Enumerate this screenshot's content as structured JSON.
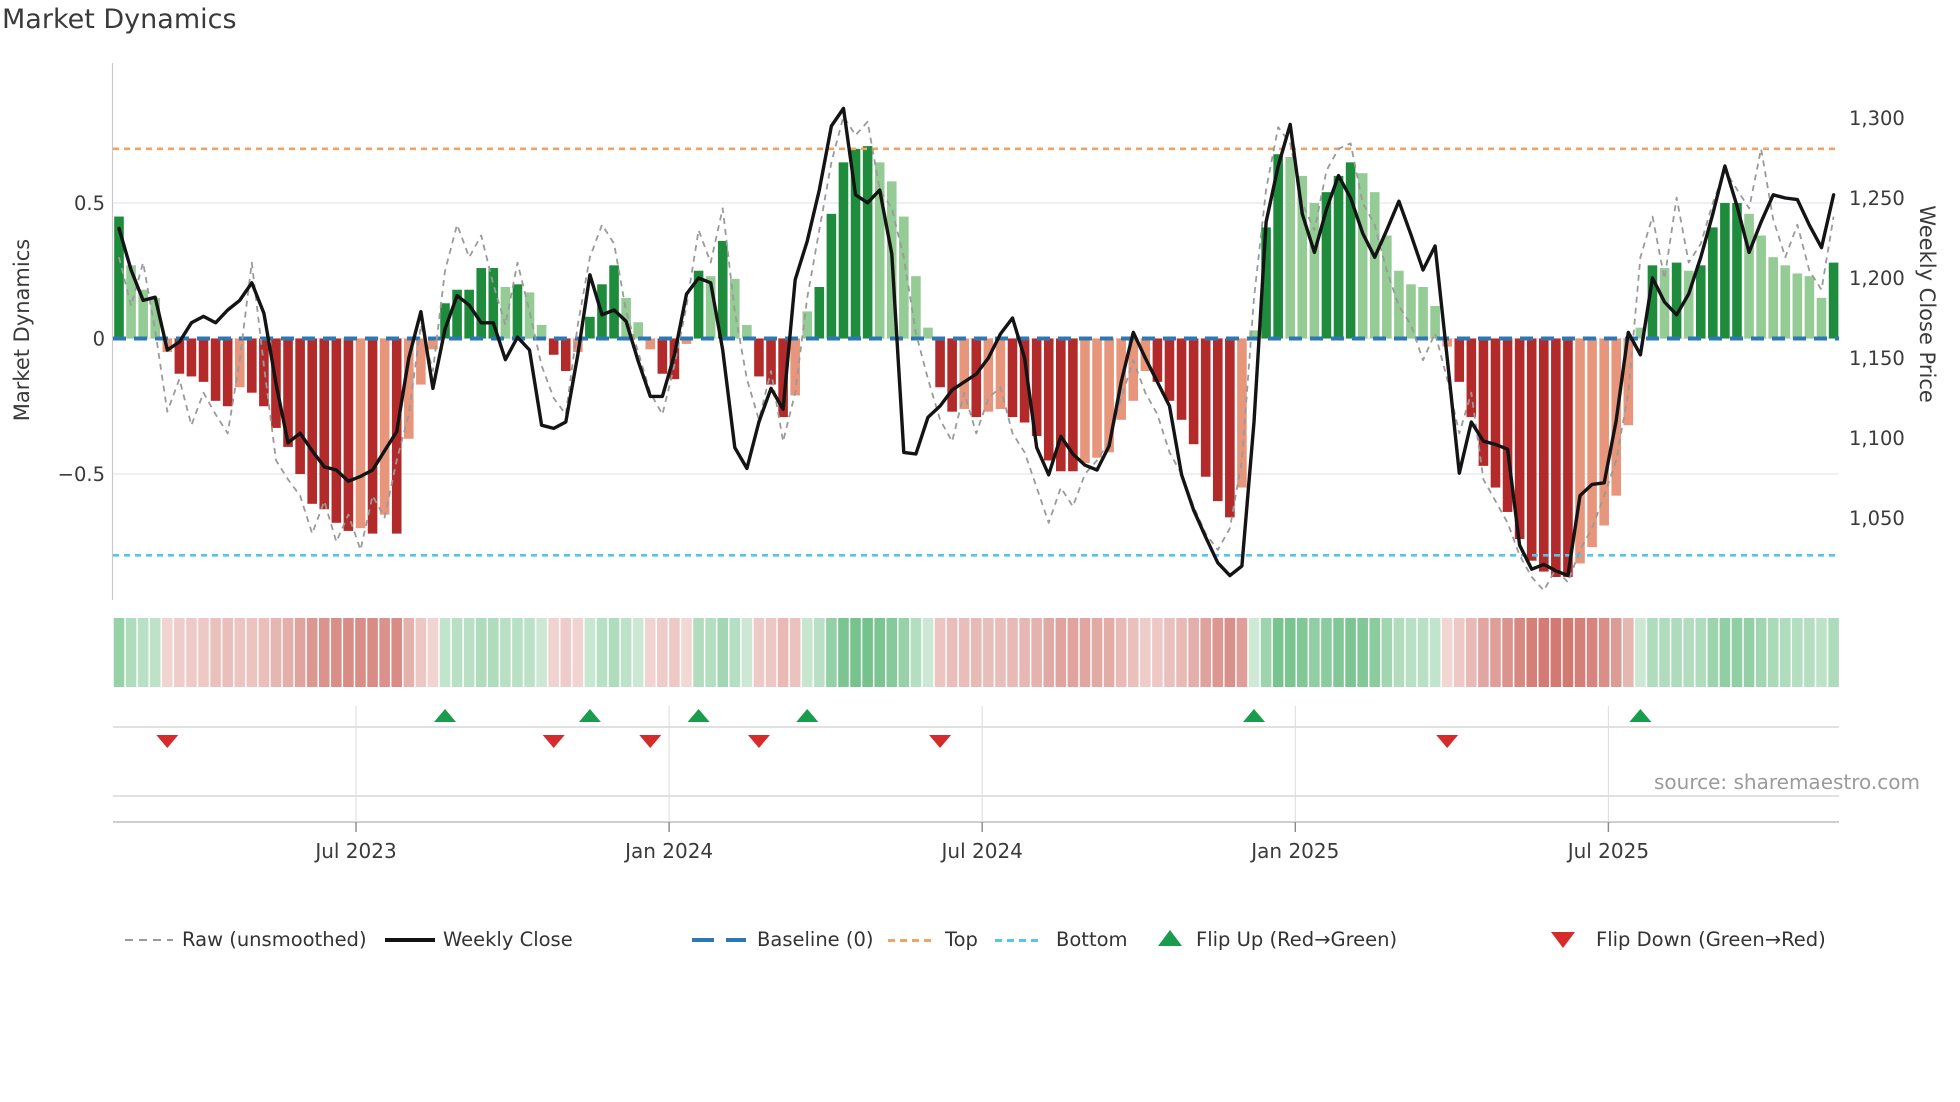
{
  "title": "Market Dynamics",
  "source": "source: sharemaestro.com",
  "axes": {
    "left_label": "Market Dynamics",
    "right_label": "Weekly Close Price",
    "left_ticks": [
      {
        "label": "0.5",
        "value": 0.5
      },
      {
        "label": "0",
        "value": 0
      },
      {
        "label": "−0.5",
        "value": -0.5
      }
    ],
    "right_ticks": [
      {
        "label": "1,300",
        "value": 1300
      },
      {
        "label": "1,250",
        "value": 1250
      },
      {
        "label": "1,200",
        "value": 1200
      },
      {
        "label": "1,150",
        "value": 1150
      },
      {
        "label": "1,100",
        "value": 1100
      },
      {
        "label": "1,050",
        "value": 1050
      }
    ],
    "x_ticks": [
      {
        "label": "Jul 2023",
        "week": 19.63
      },
      {
        "label": "Jan 2024",
        "week": 45.56
      },
      {
        "label": "Jul 2024",
        "week": 71.49
      },
      {
        "label": "Jan 2025",
        "week": 97.42
      },
      {
        "label": "Jul 2025",
        "week": 123.35
      }
    ]
  },
  "legend": {
    "items": [
      {
        "label": "Raw (unsmoothed)",
        "marker": "dashed-gray-line"
      },
      {
        "label": "Weekly Close",
        "marker": "solid-black-line"
      },
      {
        "label": "Baseline (0)",
        "marker": "dashed-blue-line"
      },
      {
        "label": "Top",
        "marker": "dotted-orange-line"
      },
      {
        "label": "Bottom",
        "marker": "dotted-cyan-line"
      },
      {
        "label": "Flip Up (Red→Green)",
        "marker": "green-up-triangle"
      },
      {
        "label": "Flip Down (Green→Red)",
        "marker": "red-down-triangle"
      }
    ]
  },
  "colors": {
    "bar_dark_green": "#1e8c3c",
    "bar_light_green": "#95cb95",
    "bar_dark_red": "#b22a2a",
    "bar_light_red": "#e8967b",
    "close_line": "#141414",
    "raw_line": "#9a9a9a",
    "baseline": "#2d78b2",
    "top_line": "#f2a263",
    "bottom_line": "#54c7e9",
    "flip_up": "#199c4b",
    "flip_down": "#d62b2b",
    "grid": "#e9ecf3",
    "text": "#3a3a3a",
    "muted": "#9b9b9b"
  },
  "chart_data": {
    "type": "combo",
    "x_unit": "weeks",
    "n_points": 143,
    "left_ylim": [
      -0.96,
      1.02
    ],
    "right_ylim": [
      999,
      1334
    ],
    "grid": "horizontal-only",
    "legend_position": "bottom",
    "reference_lines": {
      "baseline": 0,
      "top": 0.7,
      "bottom": -0.8
    },
    "flip_up_weeks": [
      27,
      39,
      48,
      57,
      94,
      126
    ],
    "flip_down_weeks": [
      4,
      36,
      44,
      53,
      68,
      110
    ],
    "heatmap": "pastel strip mirroring smoothed bar values (green positive / red negative, intensity = |value|)",
    "series": [
      {
        "name": "Market Dynamics (smoothed bars)",
        "type": "bar",
        "axis": "left",
        "shading": "dark when |value| rising vs previous week, light when fading",
        "values": [
          0.45,
          0.27,
          0.18,
          0.15,
          -0.05,
          -0.13,
          -0.14,
          -0.16,
          -0.23,
          -0.25,
          -0.18,
          -0.2,
          -0.25,
          -0.33,
          -0.4,
          -0.5,
          -0.61,
          -0.63,
          -0.68,
          -0.71,
          -0.7,
          -0.72,
          -0.65,
          -0.72,
          -0.37,
          -0.17,
          -0.04,
          0.13,
          0.18,
          0.18,
          0.26,
          0.26,
          0.19,
          0.2,
          0.17,
          0.05,
          -0.06,
          -0.12,
          -0.05,
          0.08,
          0.2,
          0.27,
          0.15,
          0.06,
          -0.04,
          -0.13,
          -0.15,
          -0.02,
          0.25,
          0.23,
          0.36,
          0.22,
          0.05,
          -0.14,
          -0.17,
          -0.29,
          -0.21,
          0.1,
          0.19,
          0.46,
          0.65,
          0.7,
          0.71,
          0.65,
          0.58,
          0.45,
          0.23,
          0.04,
          -0.18,
          -0.27,
          -0.26,
          -0.29,
          -0.27,
          -0.26,
          -0.29,
          -0.31,
          -0.36,
          -0.45,
          -0.49,
          -0.49,
          -0.46,
          -0.44,
          -0.42,
          -0.3,
          -0.23,
          -0.12,
          -0.16,
          -0.23,
          -0.3,
          -0.39,
          -0.51,
          -0.6,
          -0.66,
          -0.55,
          0.03,
          0.41,
          0.68,
          0.67,
          0.6,
          0.5,
          0.54,
          0.6,
          0.65,
          0.61,
          0.54,
          0.38,
          0.25,
          0.2,
          0.19,
          0.12,
          -0.03,
          -0.16,
          -0.29,
          -0.47,
          -0.55,
          -0.64,
          -0.74,
          -0.82,
          -0.86,
          -0.88,
          -0.88,
          -0.83,
          -0.77,
          -0.69,
          -0.58,
          -0.32,
          0.04,
          0.27,
          0.26,
          0.28,
          0.25,
          0.27,
          0.41,
          0.5,
          0.5,
          0.46,
          0.38,
          0.3,
          0.27,
          0.24,
          0.23,
          0.15,
          0.28
        ]
      },
      {
        "name": "Raw (unsmoothed)",
        "type": "line",
        "style": "dashed",
        "axis": "left",
        "values": [
          0.3,
          0.12,
          0.28,
          0.03,
          -0.27,
          -0.15,
          -0.32,
          -0.2,
          -0.28,
          -0.35,
          -0.08,
          0.28,
          -0.1,
          -0.45,
          -0.52,
          -0.58,
          -0.72,
          -0.6,
          -0.75,
          -0.65,
          -0.78,
          -0.58,
          -0.66,
          -0.45,
          -0.28,
          0.05,
          -0.12,
          0.25,
          0.42,
          0.3,
          0.38,
          0.2,
          0.05,
          0.28,
          0.1,
          -0.1,
          -0.22,
          -0.28,
          0.05,
          0.3,
          0.42,
          0.35,
          0.1,
          -0.05,
          -0.2,
          -0.28,
          -0.1,
          0.12,
          0.4,
          0.28,
          0.48,
          0.1,
          -0.15,
          -0.3,
          -0.12,
          -0.38,
          -0.2,
          0.15,
          0.4,
          0.65,
          0.82,
          0.75,
          0.8,
          0.55,
          0.48,
          0.3,
          0.02,
          -0.15,
          -0.3,
          -0.38,
          -0.2,
          -0.35,
          -0.22,
          -0.18,
          -0.35,
          -0.42,
          -0.55,
          -0.68,
          -0.55,
          -0.62,
          -0.5,
          -0.45,
          -0.38,
          -0.22,
          -0.08,
          -0.2,
          -0.28,
          -0.42,
          -0.5,
          -0.62,
          -0.72,
          -0.78,
          -0.7,
          -0.45,
          0.15,
          0.55,
          0.78,
          0.72,
          0.5,
          0.4,
          0.62,
          0.7,
          0.72,
          0.5,
          0.42,
          0.25,
          0.12,
          0.05,
          -0.08,
          0.02,
          -0.15,
          -0.35,
          -0.2,
          -0.52,
          -0.6,
          -0.68,
          -0.8,
          -0.88,
          -0.93,
          -0.85,
          -0.9,
          -0.78,
          -0.7,
          -0.58,
          -0.45,
          -0.2,
          0.3,
          0.45,
          0.22,
          0.52,
          0.28,
          0.35,
          0.5,
          0.62,
          0.55,
          0.48,
          0.7,
          0.44,
          0.3,
          0.42,
          0.25,
          0.18,
          0.45
        ]
      },
      {
        "name": "Weekly Close",
        "type": "line",
        "style": "solid",
        "axis": "right",
        "values": [
          1231,
          1205,
          1186,
          1188,
          1155,
          1160,
          1172,
          1176,
          1172,
          1180,
          1186,
          1197,
          1178,
          1134,
          1097,
          1103,
          1092,
          1082,
          1080,
          1073,
          1076,
          1080,
          1092,
          1104,
          1150,
          1179,
          1131,
          1168,
          1189,
          1183,
          1172,
          1172,
          1149,
          1163,
          1155,
          1108,
          1106,
          1110,
          1152,
          1202,
          1177,
          1180,
          1173,
          1148,
          1126,
          1126,
          1152,
          1190,
          1200,
          1197,
          1155,
          1094,
          1081,
          1110,
          1131,
          1118,
          1199,
          1223,
          1255,
          1295,
          1306,
          1252,
          1247,
          1255,
          1215,
          1091,
          1090,
          1113,
          1120,
          1130,
          1135,
          1140,
          1150,
          1165,
          1175,
          1150,
          1094,
          1077,
          1101,
          1090,
          1083,
          1080,
          1095,
          1135,
          1166,
          1150,
          1135,
          1120,
          1077,
          1055,
          1038,
          1022,
          1014,
          1020,
          1110,
          1235,
          1270,
          1296,
          1240,
          1216,
          1243,
          1264,
          1250,
          1228,
          1213,
          1230,
          1248,
          1227,
          1205,
          1220,
          1150,
          1078,
          1110,
          1098,
          1096,
          1093,
          1033,
          1018,
          1021,
          1017,
          1014,
          1064,
          1071,
          1072,
          1111,
          1166,
          1152,
          1200,
          1185,
          1177,
          1190,
          1213,
          1240,
          1270,
          1245,
          1216,
          1235,
          1252,
          1250,
          1249,
          1233,
          1219,
          1252
        ]
      }
    ]
  }
}
